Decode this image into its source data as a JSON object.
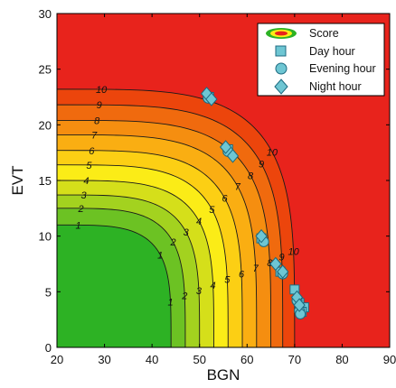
{
  "chart_data": {
    "type": "scatter",
    "title": "",
    "xlabel": "BGN",
    "ylabel": "EVT",
    "xlim": [
      20,
      90
    ],
    "ylim": [
      0,
      30
    ],
    "xticks": [
      "20",
      "30",
      "40",
      "50",
      "60",
      "70",
      "80",
      "90"
    ],
    "yticks": [
      "0",
      "5",
      "10",
      "15",
      "20",
      "25",
      "30"
    ],
    "grid": false,
    "legend_position": "top-right",
    "score_contours": {
      "x_center": 20,
      "y_center": 0,
      "levels": [
        {
          "level": 1,
          "bgn": 44,
          "evt": 11,
          "color": "#2db224"
        },
        {
          "level": 2,
          "bgn": 47,
          "evt": 12.5,
          "color": "#6cc223"
        },
        {
          "level": 3,
          "bgn": 50,
          "evt": 13.7,
          "color": "#a3d21f"
        },
        {
          "level": 4,
          "bgn": 53,
          "evt": 15,
          "color": "#d5df1a"
        },
        {
          "level": 5,
          "bgn": 56,
          "evt": 16.4,
          "color": "#fbec17"
        },
        {
          "level": 6,
          "bgn": 59,
          "evt": 17.7,
          "color": "#fccf14"
        },
        {
          "level": 7,
          "bgn": 62,
          "evt": 19.1,
          "color": "#faae12"
        },
        {
          "level": 8,
          "bgn": 65,
          "evt": 20.4,
          "color": "#f58e10"
        },
        {
          "level": 9,
          "bgn": 67.5,
          "evt": 21.8,
          "color": "#f06a0e"
        },
        {
          "level": 10,
          "bgn": 70,
          "evt": 23.2,
          "color": "#ec450c"
        }
      ],
      "outside_color": "#e8231c"
    },
    "series": [
      {
        "name": "Day hour",
        "marker": "square",
        "color": "#6ec6d3",
        "points": [
          [
            52,
            22.5
          ],
          [
            56,
            17.8
          ],
          [
            63,
            9.8
          ],
          [
            67,
            6.8
          ],
          [
            70,
            5.2
          ],
          [
            71,
            4
          ],
          [
            72,
            3.6
          ],
          [
            71.5,
            3.2
          ]
        ]
      },
      {
        "name": "Evening hour",
        "marker": "circle",
        "color": "#6ec6d3",
        "points": [
          [
            51.8,
            22.4
          ],
          [
            56,
            17.6
          ],
          [
            63.5,
            9.5
          ],
          [
            67.5,
            6.6
          ],
          [
            70.5,
            4.2
          ],
          [
            71,
            3.3
          ],
          [
            71.2,
            3
          ]
        ]
      },
      {
        "name": "Night hour",
        "marker": "diamond",
        "color": "#6ec6d3",
        "points": [
          [
            51.5,
            22.8
          ],
          [
            52.5,
            22.3
          ],
          [
            55.5,
            18
          ],
          [
            57,
            17.2
          ],
          [
            63,
            10
          ],
          [
            66,
            7.5
          ],
          [
            67.5,
            6.8
          ],
          [
            70.5,
            4.5
          ],
          [
            71,
            3.8
          ]
        ]
      }
    ],
    "legend": {
      "score_label": "Score",
      "entries": [
        "Day hour",
        "Evening hour",
        "Night hour"
      ]
    }
  }
}
